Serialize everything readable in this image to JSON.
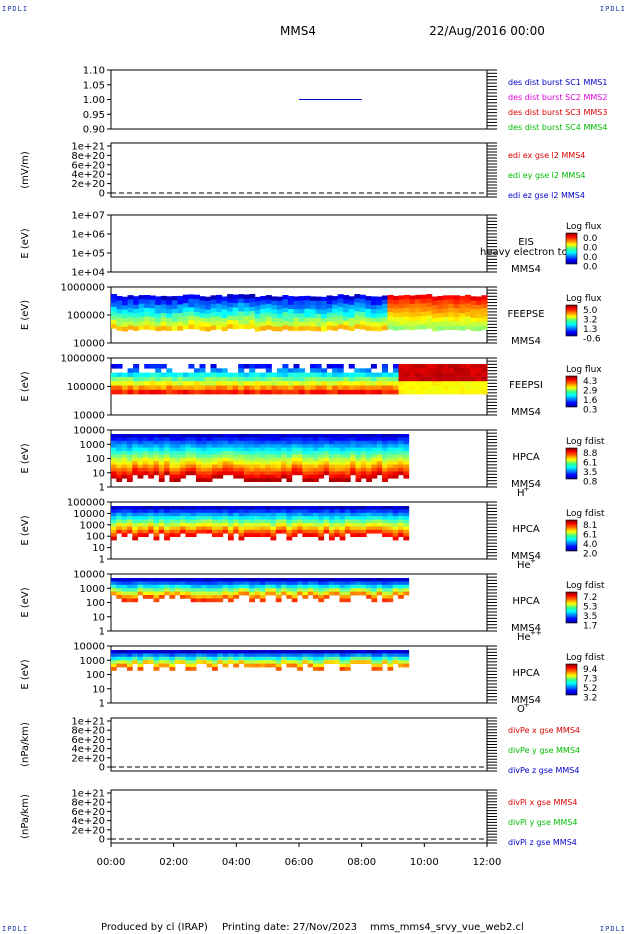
{
  "header": {
    "mission": "MMS4",
    "date": "22/Aug/2016 00:00"
  },
  "corners": {
    "tl": "IPDLI",
    "tr": "IPDLI",
    "bl": "IPDLI",
    "br": "IPDLI"
  },
  "footer": {
    "produced": "Produced by cl (IRAP)",
    "printing": "Printing date: 27/Nov/2023",
    "file": "mms_mms4_srvy_vue_web2.cl"
  },
  "x_axis": {
    "ticks": [
      "00:00",
      "02:00",
      "04:00",
      "06:00",
      "08:00",
      "10:00",
      "12:00"
    ],
    "range_hours": [
      0,
      12
    ]
  },
  "colors": {
    "red": "#dd0000",
    "green": "#00bb00",
    "blue": "#0000cc",
    "magenta": "#dd00dd",
    "dark": "#000000"
  },
  "chart_data": [
    {
      "type": "line",
      "ylim": [
        0.9,
        1.1
      ],
      "yticks": [
        "1.10",
        "1.05",
        "1.00",
        "0.95",
        "0.90"
      ],
      "ylabel": "",
      "segment": {
        "x": [
          6.0,
          8.0
        ],
        "y": [
          1.0,
          1.0
        ],
        "color": "#0000cc"
      },
      "legend": [
        {
          "text": "des dist burst SC1 MMS1",
          "color": "#0000cc"
        },
        {
          "text": "des dist burst SC2 MMS2",
          "color": "#dd00dd"
        },
        {
          "text": "des dist burst SC3 MMS3",
          "color": "#dd0000"
        },
        {
          "text": "des dist burst SC4 MMS4",
          "color": "#00bb00"
        }
      ]
    },
    {
      "type": "line",
      "ylabel": "(mV/m)",
      "yticks": [
        "1e+21",
        "8e+20",
        "6e+20",
        "4e+20",
        "2e+20",
        "0"
      ],
      "legend": [
        {
          "text": "edi ex gse l2 MMS4",
          "color": "#dd0000"
        },
        {
          "text": "edi ey gse l2 MMS4",
          "color": "#00bb00"
        },
        {
          "text": "edi ez gse l2 MMS4",
          "color": "#0000cc"
        }
      ]
    },
    {
      "type": "heatmap",
      "ylabel": "E (eV)",
      "yticks": [
        "1e+07",
        "1e+06",
        "1e+05",
        "1e+04"
      ],
      "instrument": "EIS",
      "sc": "MMS4",
      "extra": "heavy electron to",
      "cbar_title": "Log flux",
      "cbar_ticks": [
        "0.0",
        "0.0",
        "0.0",
        "0.0"
      ]
    },
    {
      "type": "heatmap",
      "ylabel": "E (eV)",
      "yticks": [
        "1000000",
        "100000",
        "10000"
      ],
      "instrument": "FEEPSE",
      "sc": "MMS4",
      "cbar_title": "Log flux",
      "cbar_ticks": [
        "5.0",
        "3.2",
        "1.3",
        "-0.6"
      ]
    },
    {
      "type": "heatmap",
      "ylabel": "E (eV)",
      "yticks": [
        "1000000",
        "100000",
        "10000"
      ],
      "instrument": "FEEPSI",
      "sc": "MMS4",
      "cbar_title": "Log flux",
      "cbar_ticks": [
        "4.3",
        "2.9",
        "1.6",
        "0.3"
      ]
    },
    {
      "type": "heatmap",
      "ylabel": "E (eV)",
      "yticks": [
        "10000",
        "1000",
        "100",
        "10",
        "1"
      ],
      "instrument": "HPCA",
      "sc": "MMS4",
      "species": "H",
      "charge": "+",
      "cbar_title": "Log fdist",
      "cbar_ticks": [
        "8.8",
        "6.1",
        "3.5",
        "0.8"
      ]
    },
    {
      "type": "heatmap",
      "ylabel": "E (eV)",
      "yticks": [
        "100000",
        "10000",
        "1000",
        "100",
        "10",
        "1"
      ],
      "instrument": "HPCA",
      "sc": "MMS4",
      "species": "He",
      "charge": "+",
      "cbar_title": "Log fdist",
      "cbar_ticks": [
        "8.1",
        "6.1",
        "4.0",
        "2.0"
      ]
    },
    {
      "type": "heatmap",
      "ylabel": "E (eV)",
      "yticks": [
        "10000",
        "1000",
        "100",
        "10",
        "1"
      ],
      "instrument": "HPCA",
      "sc": "MMS4",
      "species": "He",
      "charge": "++",
      "cbar_title": "Log fdist",
      "cbar_ticks": [
        "7.2",
        "5.3",
        "3.5",
        "1.7"
      ]
    },
    {
      "type": "heatmap",
      "ylabel": "E (eV)",
      "yticks": [
        "10000",
        "1000",
        "100",
        "10",
        "1"
      ],
      "instrument": "HPCA",
      "sc": "MMS4",
      "species": "O",
      "charge": "+",
      "cbar_title": "Log fdist",
      "cbar_ticks": [
        "9.4",
        "7.3",
        "5.2",
        "3.2"
      ]
    },
    {
      "type": "line",
      "ylabel": "(nPa/km)",
      "yticks": [
        "1e+21",
        "8e+20",
        "6e+20",
        "4e+20",
        "2e+20",
        "0"
      ],
      "legend": [
        {
          "text": "divPe x gse MMS4",
          "color": "#dd0000"
        },
        {
          "text": "divPe y gse MMS4",
          "color": "#00bb00"
        },
        {
          "text": "divPe z gse MMS4",
          "color": "#0000cc"
        }
      ]
    },
    {
      "type": "line",
      "ylabel": "(nPa/km)",
      "yticks": [
        "1e+21",
        "8e+20",
        "6e+20",
        "4e+20",
        "2e+20",
        "0"
      ],
      "legend": [
        {
          "text": "divPi x gse MMS4",
          "color": "#dd0000"
        },
        {
          "text": "divPi y gse MMS4",
          "color": "#00bb00"
        },
        {
          "text": "divPi z gse MMS4",
          "color": "#0000cc"
        }
      ]
    }
  ]
}
